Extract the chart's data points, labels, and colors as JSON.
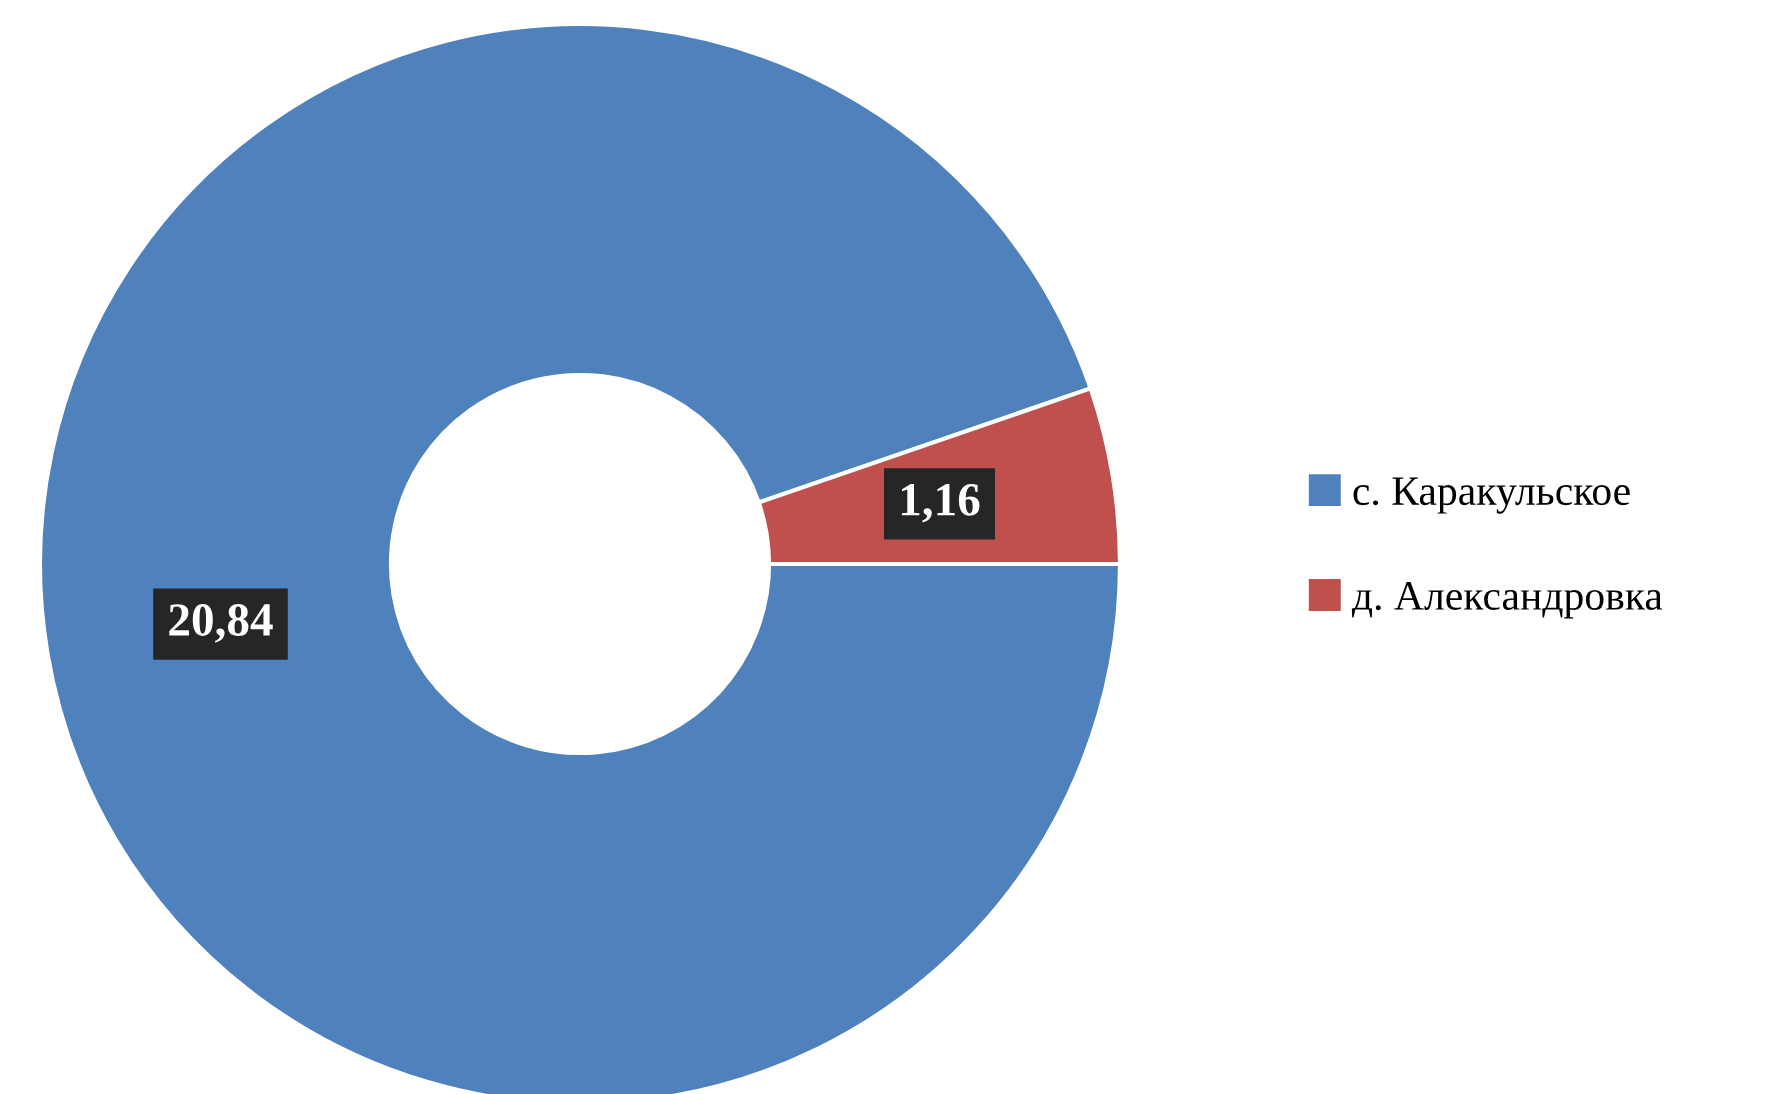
{
  "chart_data": {
    "type": "donut",
    "categories": [
      "с. Каракульское",
      "д. Александровка"
    ],
    "values": [
      20.84,
      1.16
    ],
    "colors": [
      "#4f81bd",
      "#c0504d"
    ],
    "value_labels": [
      "20,84",
      "1,16"
    ],
    "legend": "right"
  }
}
